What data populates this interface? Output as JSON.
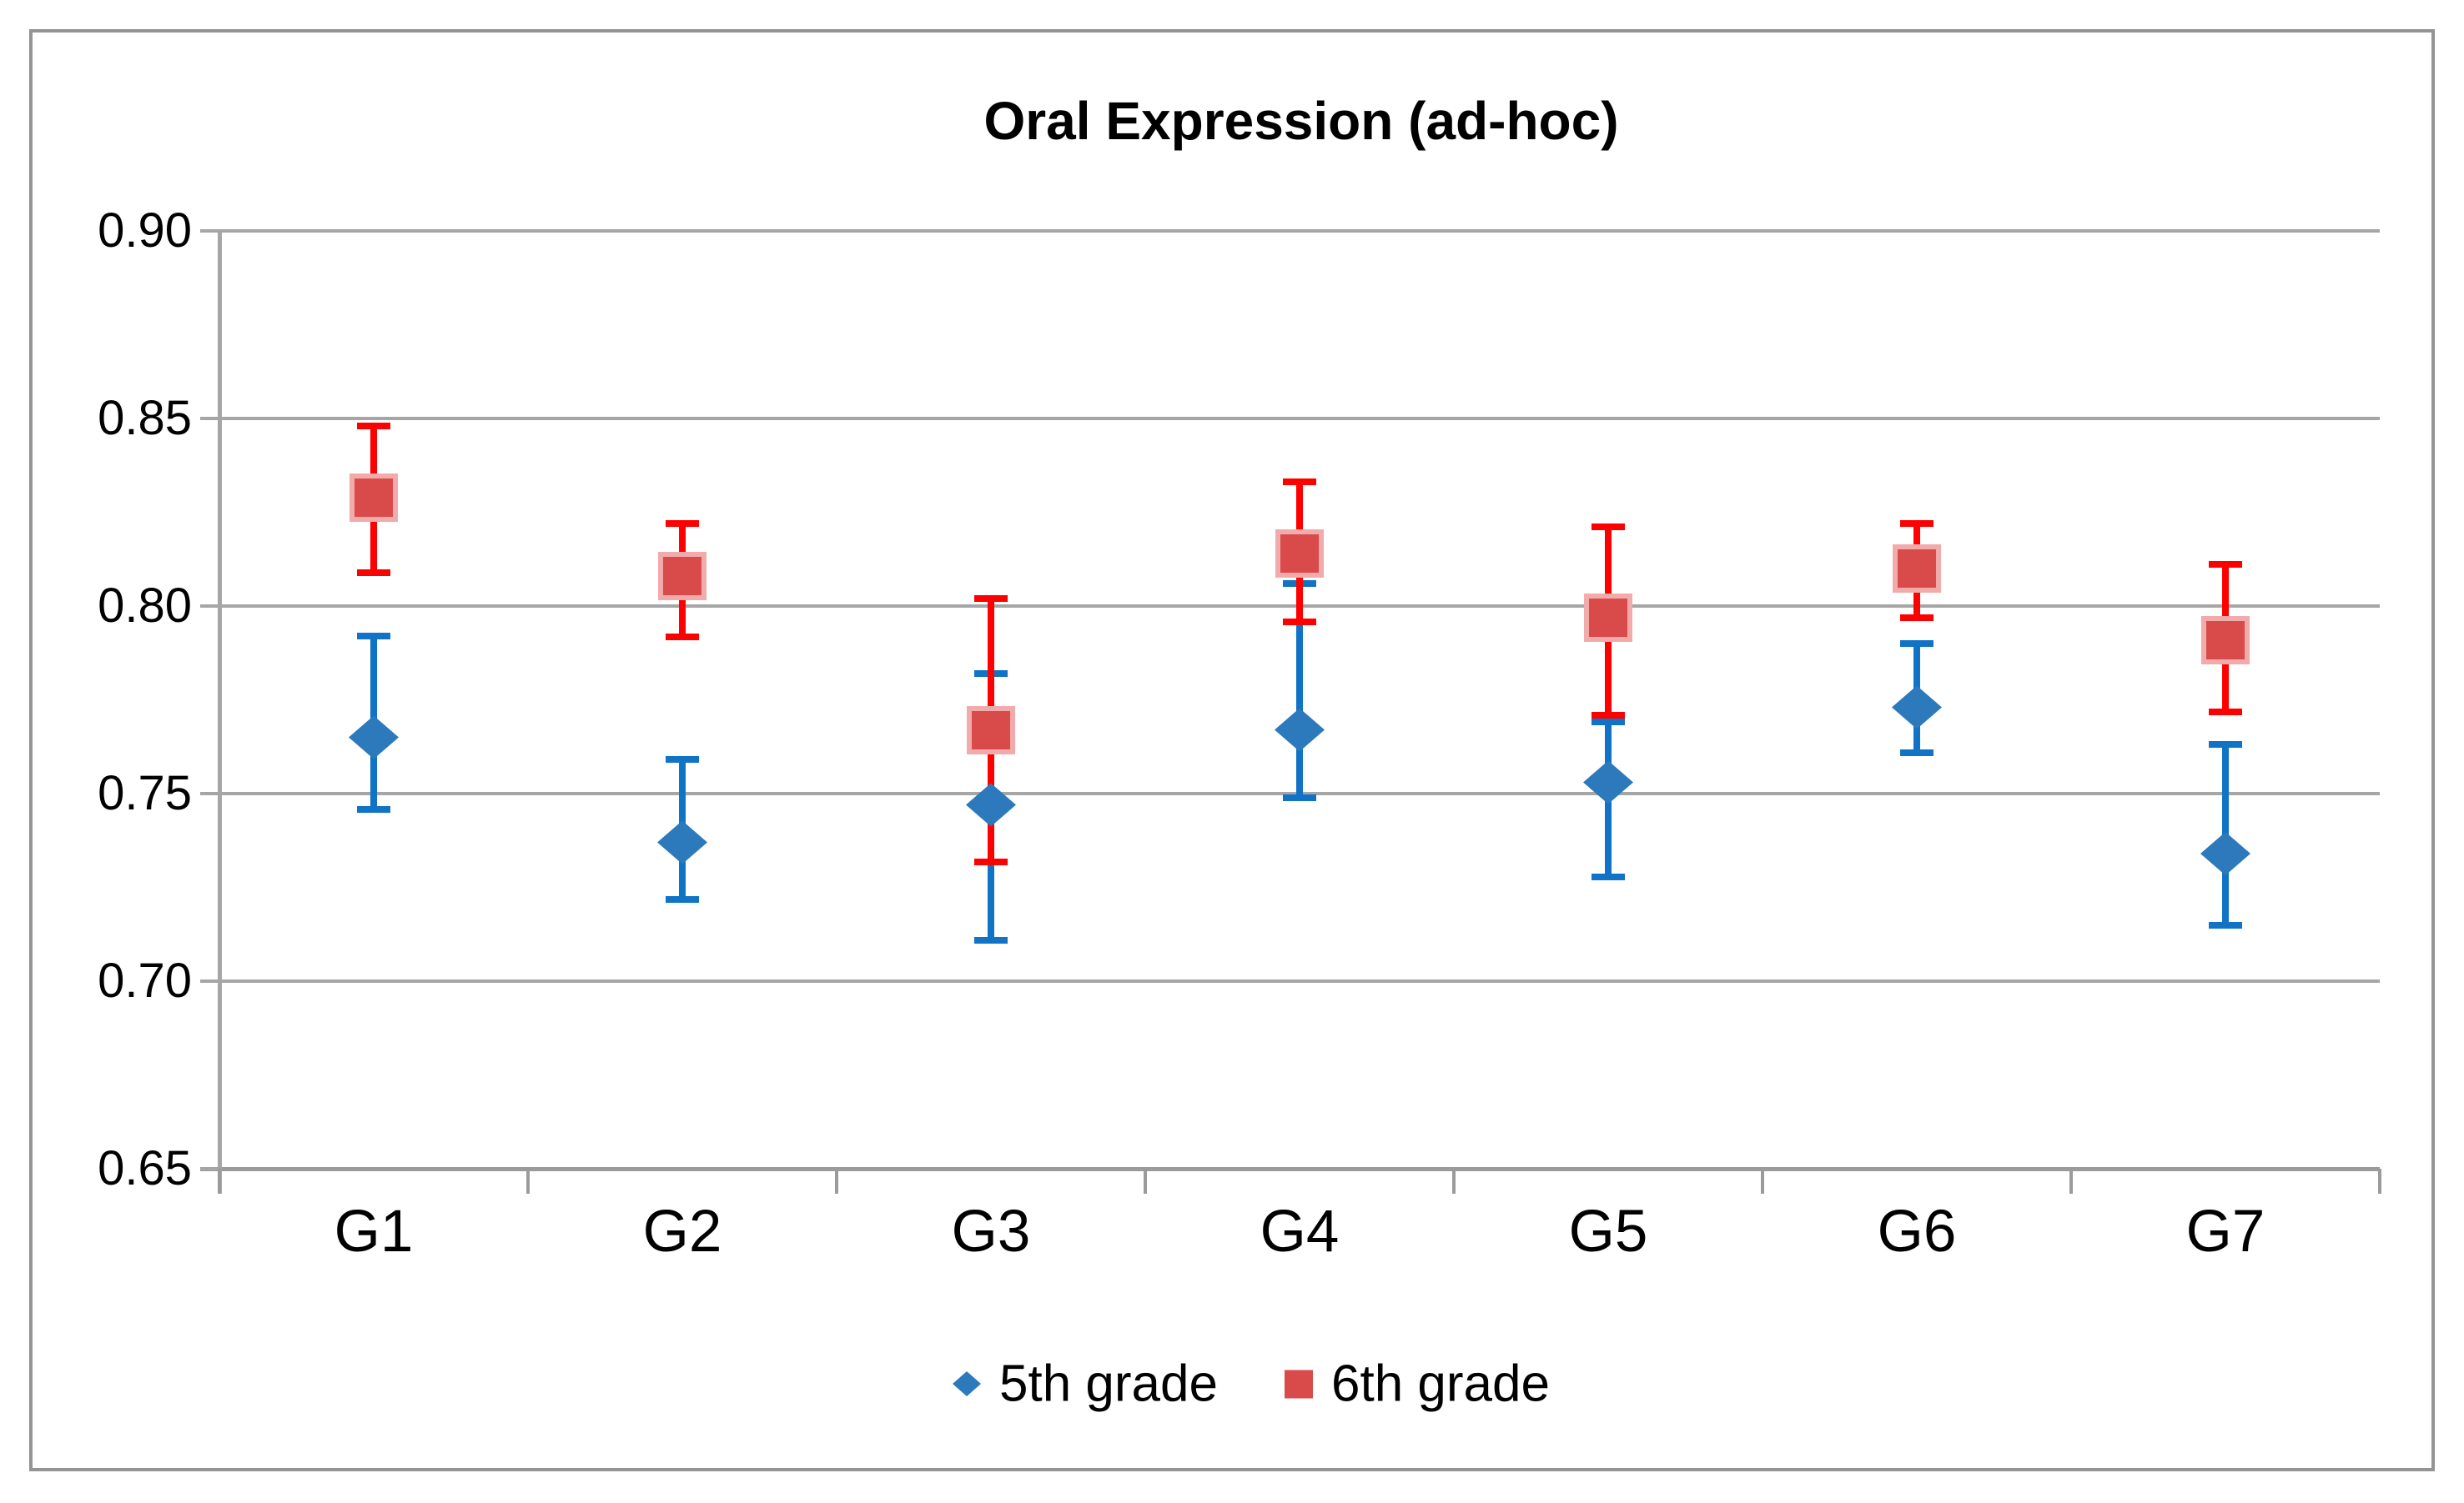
{
  "figure": {
    "title": "Oral Expression (ad-hoc)"
  },
  "colors": {
    "background": "#ffffff",
    "frame_border": "#949494",
    "gridline": "#a6a6a6",
    "axis": "#9b9b9b",
    "text": "#000000",
    "blue_marker": "#2c79bb",
    "blue_marker_edge": "#bcd6ea",
    "blue_error": "#1173c5",
    "red_marker": "#d94a4a",
    "red_marker_edge": "#f2abab",
    "red_error": "#fe0000"
  },
  "chart_data": {
    "type": "scatter",
    "title": "Oral Expression (ad-hoc)",
    "xlabel": "",
    "ylabel": "",
    "categories": [
      "G1",
      "G2",
      "G3",
      "G4",
      "G5",
      "G6",
      "G7"
    ],
    "y_axis": {
      "min": 0.65,
      "max": 0.9,
      "tick_step": 0.05,
      "tick_labels": [
        "0.90",
        "0.85",
        "0.80",
        "0.75",
        "0.70",
        "0.65"
      ],
      "tick_values": [
        0.9,
        0.85,
        0.8,
        0.75,
        0.7,
        0.65
      ]
    },
    "grid": true,
    "legend_position": "bottom-center",
    "series": [
      {
        "name": "5th grade",
        "marker": "diamond",
        "color": "#2c79bb",
        "error_color": "#1173c5",
        "values": [
          0.765,
          0.737,
          0.747,
          0.767,
          0.753,
          0.773,
          0.734
        ],
        "error_low": [
          0.745,
          0.721,
          0.71,
          0.748,
          0.727,
          0.76,
          0.714
        ],
        "error_high": [
          0.793,
          0.76,
          0.783,
          0.807,
          0.77,
          0.791,
          0.764
        ]
      },
      {
        "name": "6th grade",
        "marker": "square",
        "color": "#d94a4a",
        "error_color": "#fe0000",
        "values": [
          0.829,
          0.808,
          0.767,
          0.814,
          0.797,
          0.81,
          0.791
        ],
        "error_low": [
          0.808,
          0.791,
          0.731,
          0.795,
          0.77,
          0.796,
          0.771
        ],
        "error_high": [
          0.849,
          0.823,
          0.803,
          0.834,
          0.822,
          0.823,
          0.812
        ]
      }
    ]
  }
}
